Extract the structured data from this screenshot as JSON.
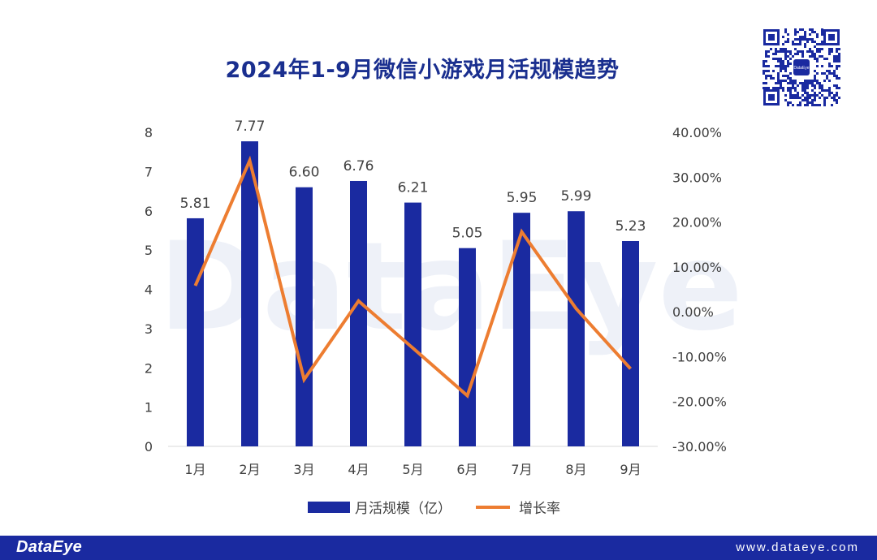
{
  "chart_data": {
    "type": "bar",
    "title": "2024年1-9月微信小游戏月活规模趋势",
    "categories": [
      "1月",
      "2月",
      "3月",
      "4月",
      "5月",
      "6月",
      "7月",
      "8月",
      "9月"
    ],
    "series": [
      {
        "name": "月活规模（亿）",
        "type": "bar",
        "axis": "left",
        "color": "#1a2aa0",
        "values": [
          5.81,
          7.77,
          6.6,
          6.76,
          6.21,
          5.05,
          5.95,
          5.99,
          5.23
        ],
        "labels": [
          "5.81",
          "7.77",
          "6.60",
          "6.76",
          "6.21",
          "5.05",
          "5.95",
          "5.99",
          "5.23"
        ]
      },
      {
        "name": "增长率",
        "type": "line",
        "axis": "right",
        "color": "#ed7d31",
        "values": [
          5.8,
          33.7,
          -15.1,
          2.4,
          -8.1,
          -18.7,
          17.8,
          0.7,
          -12.7
        ]
      }
    ],
    "y_left": {
      "min": 0,
      "max": 8,
      "ticks": [
        "0",
        "1",
        "2",
        "3",
        "4",
        "5",
        "6",
        "7",
        "8"
      ]
    },
    "y_right": {
      "min": -30,
      "max": 40,
      "ticks": [
        "-30.00%",
        "-20.00%",
        "-10.00%",
        "0.00%",
        "10.00%",
        "20.00%",
        "30.00%",
        "40.00%"
      ]
    },
    "legend_position": "bottom",
    "watermark": "DataEye"
  },
  "footer": {
    "brand": "DataEye",
    "url": "www.dataeye.com"
  },
  "qr": {
    "badge_text": "DataEye"
  },
  "colors": {
    "title": "#1a2f8f",
    "footer_bg": "#1a2aa0"
  }
}
